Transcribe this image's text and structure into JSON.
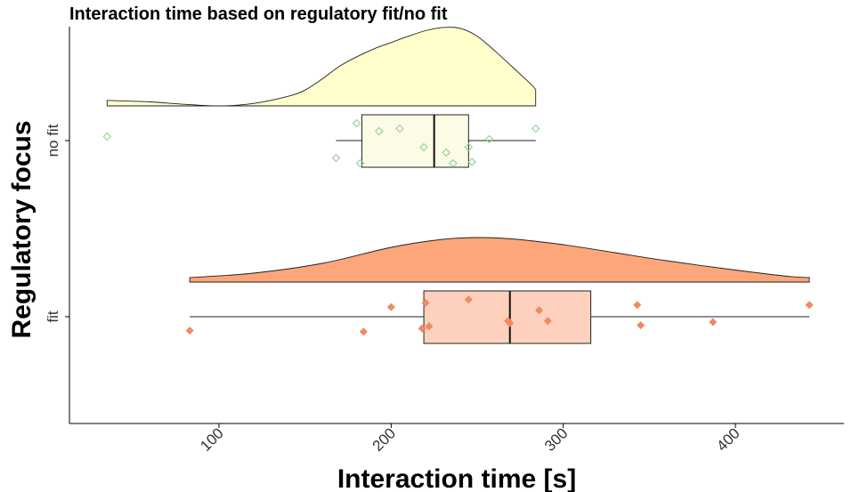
{
  "chart_data": {
    "type": "raincloud",
    "title": "Interaction time based on regulatory fit/no fit",
    "xlabel": "Interaction time [s]",
    "ylabel": "Regulatory focus",
    "xlim": [
      20,
      450
    ],
    "xticks": [
      100,
      200,
      300,
      400
    ],
    "categories": [
      "no fit",
      "fit"
    ],
    "grid": false,
    "legend": "none",
    "series": [
      {
        "name": "no fit",
        "fill_color": "#ffffcc",
        "box_color": "#fbfbe6",
        "point_color": "#8fd18f",
        "point_shape": "diamond-open",
        "density": {
          "x": [
            35,
            60,
            80,
            100,
            120,
            140,
            150,
            160,
            170,
            180,
            190,
            200,
            210,
            220,
            230,
            240,
            250,
            260,
            270,
            280,
            284
          ],
          "y": [
            0.07,
            0.05,
            0.02,
            0.0,
            0.03,
            0.12,
            0.2,
            0.34,
            0.5,
            0.62,
            0.72,
            0.8,
            0.88,
            0.95,
            0.99,
            0.98,
            0.88,
            0.7,
            0.5,
            0.3,
            0.21
          ]
        },
        "box": {
          "min": 168,
          "q1": 183,
          "median": 225,
          "q3": 245,
          "max": 284
        },
        "points": [
          {
            "x": 35,
            "jitter": 0.15
          },
          {
            "x": 168,
            "jitter": -0.65
          },
          {
            "x": 180,
            "jitter": 0.65
          },
          {
            "x": 182,
            "jitter": -0.85
          },
          {
            "x": 193,
            "jitter": 0.35
          },
          {
            "x": 205,
            "jitter": 0.45
          },
          {
            "x": 219,
            "jitter": -0.25
          },
          {
            "x": 232,
            "jitter": -0.45
          },
          {
            "x": 236,
            "jitter": -0.85
          },
          {
            "x": 245,
            "jitter": -0.25
          },
          {
            "x": 247,
            "jitter": -0.8
          },
          {
            "x": 257,
            "jitter": 0.05
          },
          {
            "x": 284,
            "jitter": 0.45
          }
        ]
      },
      {
        "name": "fit",
        "fill_color": "#fca67a",
        "box_color": "#fdd1bd",
        "point_color": "#ef8a62",
        "point_shape": "diamond",
        "density": {
          "x": [
            83,
            120,
            160,
            200,
            230,
            250,
            270,
            300,
            330,
            360,
            400,
            430,
            443
          ],
          "y": [
            0.1,
            0.2,
            0.42,
            0.78,
            0.96,
            1.0,
            0.97,
            0.84,
            0.66,
            0.48,
            0.27,
            0.13,
            0.1
          ]
        },
        "box": {
          "min": 83,
          "q1": 219,
          "median": 269,
          "q3": 316,
          "max": 443
        },
        "points": [
          {
            "x": 83,
            "jitter": -0.65
          },
          {
            "x": 184,
            "jitter": -0.7
          },
          {
            "x": 200,
            "jitter": 0.45
          },
          {
            "x": 218,
            "jitter": -0.55
          },
          {
            "x": 220,
            "jitter": 0.65
          },
          {
            "x": 222,
            "jitter": -0.45
          },
          {
            "x": 245,
            "jitter": 0.8
          },
          {
            "x": 268,
            "jitter": -0.2
          },
          {
            "x": 269,
            "jitter": -0.3
          },
          {
            "x": 286,
            "jitter": 0.3
          },
          {
            "x": 291,
            "jitter": -0.2
          },
          {
            "x": 343,
            "jitter": 0.55
          },
          {
            "x": 345,
            "jitter": -0.4
          },
          {
            "x": 387,
            "jitter": -0.25
          },
          {
            "x": 443,
            "jitter": 0.55
          }
        ]
      }
    ]
  }
}
